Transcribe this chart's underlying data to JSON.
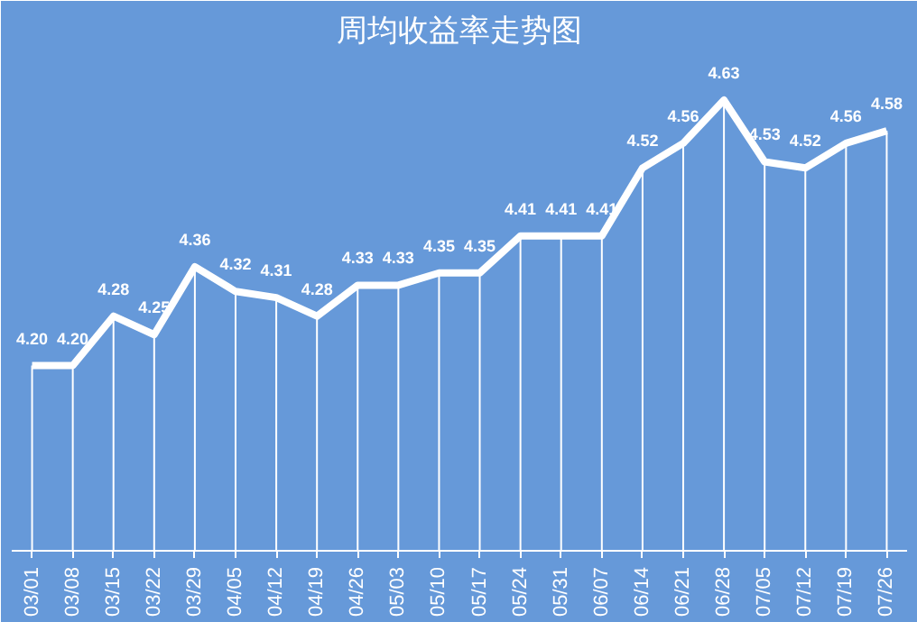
{
  "chart_data": {
    "type": "line",
    "title": "周均收益率走势图",
    "categories": [
      "03/01",
      "03/08",
      "03/15",
      "03/22",
      "03/29",
      "04/05",
      "04/12",
      "04/19",
      "04/26",
      "05/03",
      "05/10",
      "05/17",
      "05/24",
      "05/31",
      "06/07",
      "06/14",
      "06/21",
      "06/28",
      "07/05",
      "07/12",
      "07/19",
      "07/26"
    ],
    "series": [
      {
        "color": "#ffffff",
        "values": [
          4.2,
          4.2,
          4.28,
          4.25,
          4.36,
          4.32,
          4.31,
          4.28,
          4.33,
          4.33,
          4.35,
          4.35,
          4.41,
          4.41,
          4.41,
          4.52,
          4.56,
          4.63,
          4.53,
          4.52,
          4.56,
          4.58
        ],
        "value_labels": [
          "4.20",
          "4.20",
          "4.28",
          "4.25",
          "4.36",
          "4.32",
          "4.31",
          "4.28",
          "4.33",
          "4.33",
          "4.35",
          "4.35",
          "4.41",
          "4.41",
          "4.41",
          "4.52",
          "4.56",
          "4.63",
          "4.53",
          "4.52",
          "4.56",
          "4.58"
        ]
      }
    ],
    "ylim": [
      3.9,
      4.7
    ],
    "tick_labels": "x",
    "grid": "x",
    "marker": "none",
    "line_style": "solid"
  }
}
